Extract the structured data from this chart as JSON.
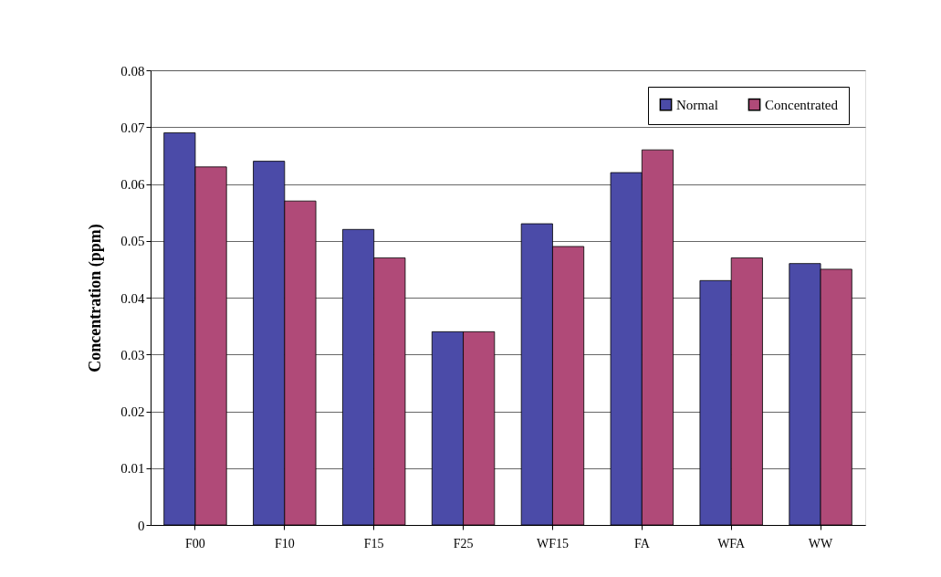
{
  "chart_data": {
    "type": "bar",
    "ylabel": "Concentration (ppm)",
    "categories": [
      "F00",
      "F10",
      "F15",
      "F25",
      "WF15",
      "FA",
      "WFA",
      "WW"
    ],
    "series": [
      {
        "name": "Normal",
        "color": "#4b4ba8",
        "values": [
          0.069,
          0.064,
          0.052,
          0.034,
          0.053,
          0.062,
          0.043,
          0.046
        ]
      },
      {
        "name": "Concentrated",
        "color": "#b04a78",
        "values": [
          0.063,
          0.057,
          0.047,
          0.034,
          0.049,
          0.066,
          0.047,
          0.045
        ]
      }
    ],
    "ylim": [
      0,
      0.08
    ],
    "yticks": [
      0,
      0.01,
      0.02,
      0.03,
      0.04,
      0.05,
      0.06,
      0.07,
      0.08
    ],
    "grid": "y",
    "legend": "top right"
  }
}
